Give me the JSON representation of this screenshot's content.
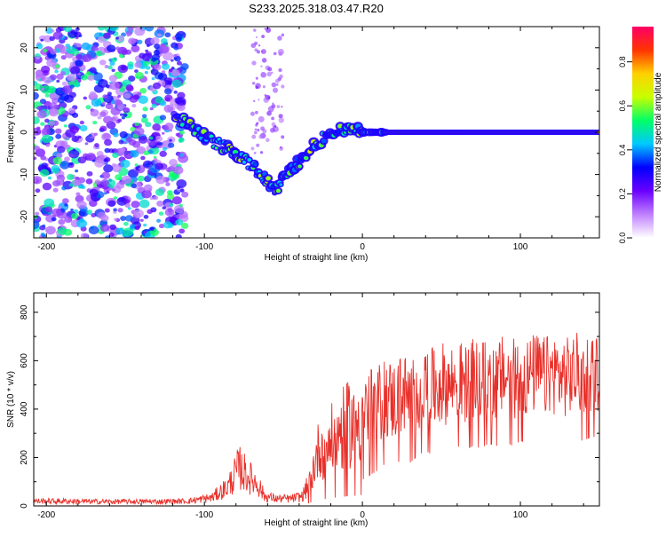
{
  "title": "S233.2025.318.03.47.R20",
  "chart_data": [
    {
      "type": "heatmap",
      "name": "spectrogram",
      "xlabel": "Height of straight line (km)",
      "ylabel": "Frequency (Hz)",
      "xlim": [
        -208,
        150
      ],
      "ylim": [
        -25,
        25
      ],
      "xticks": [
        -200,
        -100,
        0,
        100
      ],
      "yticks": [
        -20,
        -10,
        0,
        10,
        20
      ],
      "grid": false,
      "track_points": [
        {
          "x": -118,
          "y": 3
        },
        {
          "x": -110,
          "y": 2
        },
        {
          "x": -100,
          "y": -1
        },
        {
          "x": -90,
          "y": -3
        },
        {
          "x": -80,
          "y": -5
        },
        {
          "x": -70,
          "y": -8
        },
        {
          "x": -62,
          "y": -11
        },
        {
          "x": -55,
          "y": -14
        },
        {
          "x": -48,
          "y": -10
        },
        {
          "x": -40,
          "y": -7
        },
        {
          "x": -30,
          "y": -3
        },
        {
          "x": -20,
          "y": 0
        },
        {
          "x": -10,
          "y": 1
        },
        {
          "x": 0,
          "y": 0
        },
        {
          "x": 20,
          "y": 0
        },
        {
          "x": 150,
          "y": 0
        }
      ],
      "colorbar": {
        "label": "Normalized spectral amplitude",
        "range": [
          0,
          0.96
        ],
        "ticks": [
          0.0,
          0.2,
          0.4,
          0.6,
          0.8
        ],
        "colors": [
          "#ffffff",
          "#c080ff",
          "#6a00ff",
          "#0000ff",
          "#00c8ff",
          "#00ff66",
          "#c8ff00",
          "#ffd000",
          "#ff3300",
          "#ff0066"
        ]
      }
    },
    {
      "type": "line",
      "name": "snr",
      "xlabel": "Height of straight line (km)",
      "ylabel": "SNR (10 * v/v)",
      "xlim": [
        -208,
        150
      ],
      "ylim": [
        0,
        880
      ],
      "xticks": [
        -200,
        -100,
        0,
        100
      ],
      "yticks": [
        0,
        200,
        400,
        600,
        800
      ],
      "grid": false,
      "series": [
        {
          "name": "SNR",
          "color": "#e8302a",
          "x": [
            -208,
            -190,
            -170,
            -150,
            -130,
            -110,
            -95,
            -85,
            -78,
            -72,
            -66,
            -62,
            -55,
            -45,
            -38,
            -34,
            -30,
            -27,
            -24,
            -20,
            -15,
            -10,
            -5,
            0,
            5,
            10,
            15,
            20,
            25,
            30,
            35,
            40,
            45,
            50,
            55,
            60,
            65,
            70,
            75,
            80,
            85,
            90,
            95,
            100,
            105,
            110,
            115,
            120,
            125,
            130,
            135,
            140,
            145,
            150
          ],
          "y": [
            20,
            20,
            18,
            18,
            18,
            20,
            35,
            80,
            160,
            120,
            90,
            40,
            30,
            30,
            40,
            90,
            180,
            250,
            230,
            270,
            300,
            330,
            350,
            380,
            400,
            420,
            450,
            430,
            470,
            450,
            480,
            500,
            480,
            510,
            500,
            520,
            500,
            520,
            510,
            530,
            520,
            540,
            520,
            540,
            530,
            550,
            530,
            550,
            540,
            530,
            550,
            540,
            560,
            550
          ]
        }
      ]
    }
  ]
}
